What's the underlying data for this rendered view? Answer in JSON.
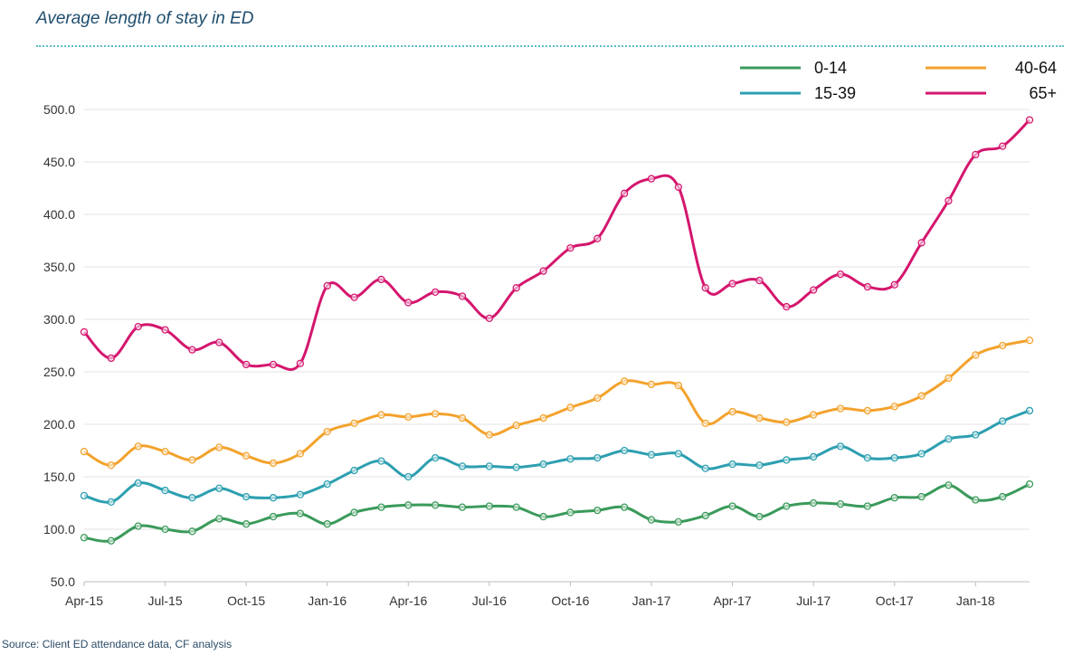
{
  "title": "Average length of stay in ED",
  "source": "Source: Client ED attendance data, CF analysis",
  "chart_data": {
    "type": "line",
    "xlabel": "",
    "ylabel": "",
    "ylim": [
      50,
      500
    ],
    "yticks": [
      "50.0",
      "100.0",
      "150.0",
      "200.0",
      "250.0",
      "300.0",
      "350.0",
      "400.0",
      "450.0",
      "500.0"
    ],
    "x": [
      "Apr-15",
      "May-15",
      "Jun-15",
      "Jul-15",
      "Aug-15",
      "Sep-15",
      "Oct-15",
      "Nov-15",
      "Dec-15",
      "Jan-16",
      "Feb-16",
      "Mar-16",
      "Apr-16",
      "May-16",
      "Jun-16",
      "Jul-16",
      "Aug-16",
      "Sep-16",
      "Oct-16",
      "Nov-16",
      "Dec-16",
      "Jan-17",
      "Feb-17",
      "Mar-17",
      "Apr-17",
      "May-17",
      "Jun-17",
      "Jul-17",
      "Aug-17",
      "Sep-17",
      "Oct-17",
      "Nov-17",
      "Dec-17",
      "Jan-18",
      "Feb-18",
      "Mar-18"
    ],
    "xtick_labels": [
      "Apr-15",
      "Jul-15",
      "Oct-15",
      "Jan-16",
      "Apr-16",
      "Jul-16",
      "Oct-16",
      "Jan-17",
      "Apr-17",
      "Jul-17",
      "Oct-17",
      "Jan-18"
    ],
    "xtick_indices": [
      0,
      3,
      6,
      9,
      12,
      15,
      18,
      21,
      24,
      27,
      30,
      33
    ],
    "grid": "horizontal",
    "legend_position": "top-right",
    "series": [
      {
        "name": "0-14",
        "color": "#3a9a5a",
        "values": [
          92,
          89,
          103,
          100,
          98,
          110,
          105,
          112,
          115,
          105,
          116,
          121,
          123,
          123,
          121,
          122,
          121,
          112,
          116,
          118,
          121,
          109,
          107,
          113,
          122,
          112,
          122,
          125,
          124,
          122,
          130,
          131,
          142,
          128,
          131,
          143
        ]
      },
      {
        "name": "15-39",
        "color": "#2c9fb0",
        "values": [
          132,
          126,
          144,
          137,
          130,
          139,
          131,
          130,
          133,
          143,
          156,
          165,
          150,
          168,
          160,
          160,
          159,
          162,
          167,
          168,
          175,
          171,
          172,
          158,
          162,
          161,
          166,
          169,
          179,
          168,
          168,
          172,
          186,
          190,
          203,
          213
        ]
      },
      {
        "name": "40-64",
        "color": "#f3a22c",
        "values": [
          174,
          161,
          179,
          174,
          166,
          178,
          170,
          163,
          172,
          193,
          201,
          209,
          207,
          210,
          206,
          190,
          199,
          206,
          216,
          225,
          241,
          238,
          237,
          201,
          212,
          206,
          202,
          209,
          215,
          213,
          217,
          227,
          244,
          266,
          275,
          280
        ]
      },
      {
        "name": "65+",
        "color": "#d4166e",
        "values": [
          288,
          263,
          293,
          290,
          271,
          278,
          257,
          257,
          258,
          332,
          321,
          338,
          316,
          326,
          322,
          301,
          330,
          346,
          368,
          377,
          420,
          434,
          426,
          330,
          334,
          337,
          312,
          328,
          343,
          331,
          333,
          373,
          413,
          457,
          465,
          490
        ]
      }
    ]
  }
}
